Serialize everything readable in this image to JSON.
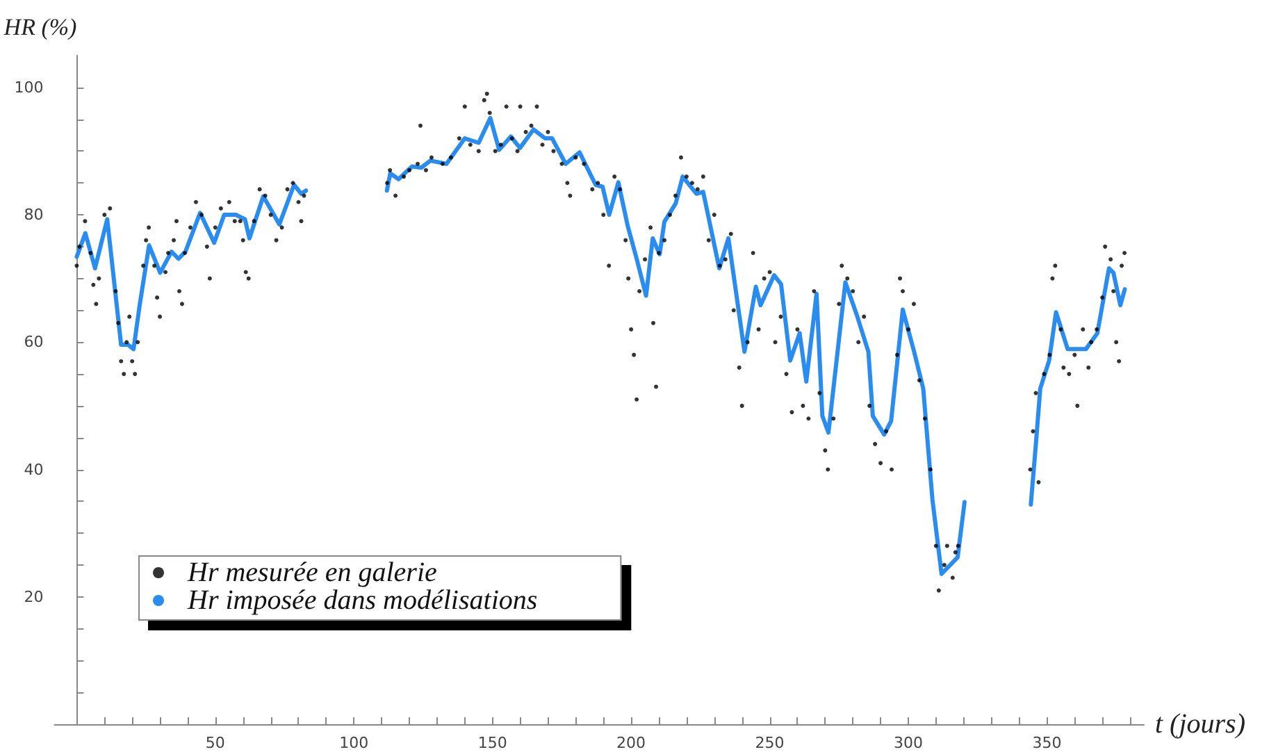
{
  "chart_data": {
    "type": "scatter",
    "xlabel": "t (jours)",
    "ylabel": "HR (%)",
    "xlim": [
      -8,
      385
    ],
    "ylim": [
      0,
      105
    ],
    "xticks": [
      {
        "value": 10,
        "label": null
      },
      {
        "value": 20,
        "label": null
      },
      {
        "value": 30,
        "label": null
      },
      {
        "value": 40,
        "label": null
      },
      50,
      {
        "value": 60,
        "label": null
      },
      {
        "value": 70,
        "label": null
      },
      {
        "value": 80,
        "label": null
      },
      {
        "value": 90,
        "label": null
      },
      100,
      {
        "value": 110,
        "label": null
      },
      {
        "value": 120,
        "label": null
      },
      {
        "value": 130,
        "label": null
      },
      {
        "value": 140,
        "label": null
      },
      150,
      {
        "value": 160,
        "label": null
      },
      {
        "value": 170,
        "label": null
      },
      {
        "value": 180,
        "label": null
      },
      {
        "value": 190,
        "label": null
      },
      200,
      {
        "value": 210,
        "label": null
      },
      {
        "value": 220,
        "label": null
      },
      {
        "value": 230,
        "label": null
      },
      {
        "value": 240,
        "label": null
      },
      250,
      {
        "value": 260,
        "label": null
      },
      {
        "value": 270,
        "label": null
      },
      {
        "value": 280,
        "label": null
      },
      {
        "value": 290,
        "label": null
      },
      300,
      {
        "value": 310,
        "label": null
      },
      {
        "value": 320,
        "label": null
      },
      {
        "value": 330,
        "label": null
      },
      {
        "value": 340,
        "label": null
      },
      350,
      {
        "value": 360,
        "label": null
      },
      {
        "value": 370,
        "label": null
      },
      {
        "value": 380,
        "label": null
      }
    ],
    "yticks": [
      {
        "value": 5,
        "label": null
      },
      {
        "value": 10,
        "label": null
      },
      {
        "value": 15,
        "label": null
      },
      20,
      {
        "value": 25,
        "label": null
      },
      {
        "value": 30,
        "label": null
      },
      {
        "value": 35,
        "label": null
      },
      40,
      {
        "value": 45,
        "label": null
      },
      {
        "value": 50,
        "label": null
      },
      {
        "value": 55,
        "label": null
      },
      60,
      {
        "value": 65,
        "label": null
      },
      {
        "value": 70,
        "label": null
      },
      {
        "value": 75,
        "label": null
      },
      80,
      {
        "value": 85,
        "label": null
      },
      {
        "value": 90,
        "label": null
      },
      {
        "value": 95,
        "label": null
      },
      100
    ],
    "grid": false,
    "legend": "bottom left",
    "marker": "circle",
    "series": [
      {
        "name": "Hr mesurée en galerie",
        "color": "#000000",
        "x": [
          0,
          1,
          3,
          5,
          6,
          7,
          8,
          10,
          12,
          14,
          15,
          16,
          17,
          18,
          19,
          20,
          21,
          22,
          24,
          25,
          26,
          28,
          29,
          30,
          32,
          33,
          35,
          36,
          37,
          38,
          39,
          41,
          43,
          45,
          47,
          48,
          50,
          52,
          55,
          57,
          59,
          60,
          61,
          62,
          64,
          66,
          68,
          70,
          72,
          74,
          76,
          78,
          80,
          81,
          82,
          112,
          113,
          115,
          118,
          120,
          123,
          124,
          126,
          128,
          132,
          135,
          138,
          140,
          142,
          145,
          147,
          148,
          149,
          151,
          153,
          155,
          157,
          159,
          160,
          162,
          164,
          166,
          168,
          170,
          172,
          175,
          177,
          178,
          180,
          183,
          186,
          188,
          190,
          192,
          194,
          196,
          198,
          199,
          200,
          201,
          202,
          203,
          205,
          207,
          208,
          209,
          210,
          212,
          214,
          216,
          218,
          220,
          222,
          224,
          226,
          228,
          230,
          232,
          234,
          236,
          237,
          239,
          240,
          242,
          244,
          246,
          248,
          250,
          252,
          254,
          256,
          258,
          260,
          262,
          264,
          266,
          268,
          270,
          271,
          273,
          275,
          276,
          278,
          280,
          282,
          284,
          286,
          288,
          290,
          292,
          294,
          296,
          297,
          298,
          300,
          302,
          304,
          306,
          308,
          310,
          311,
          313,
          314,
          316,
          317,
          318,
          344,
          345,
          346,
          347,
          349,
          351,
          352,
          353,
          355,
          356,
          358,
          360,
          361,
          363,
          365,
          366,
          368,
          370,
          371,
          373,
          374,
          375,
          376,
          377,
          378
        ],
        "values": [
          72,
          75,
          79,
          74,
          69,
          66,
          70,
          80,
          81,
          68,
          63,
          57,
          55,
          60,
          64,
          57,
          55,
          60,
          72,
          76,
          78,
          72,
          67,
          64,
          71,
          74,
          76,
          79,
          68,
          66,
          74,
          78,
          82,
          80,
          75,
          70,
          78,
          81,
          82,
          79,
          79,
          76,
          71,
          70,
          79,
          84,
          83,
          80,
          76,
          78,
          84,
          85,
          82,
          79,
          83,
          85,
          87,
          83,
          86,
          87,
          88,
          94,
          87,
          89,
          88,
          89,
          92,
          97,
          91,
          90,
          98,
          99,
          96,
          90,
          91,
          97,
          92,
          90,
          97,
          93,
          94,
          97,
          91,
          93,
          90,
          88,
          85,
          83,
          89,
          88,
          84,
          85,
          80,
          72,
          86,
          84,
          76,
          70,
          62,
          58,
          51,
          68,
          73,
          78,
          63,
          53,
          74,
          76,
          80,
          83,
          89,
          86,
          85,
          84,
          86,
          76,
          80,
          72,
          73,
          77,
          65,
          56,
          50,
          60,
          74,
          62,
          70,
          71,
          60,
          64,
          55,
          49,
          62,
          50,
          48,
          68,
          52,
          43,
          40,
          48,
          66,
          72,
          70,
          68,
          60,
          64,
          50,
          44,
          41,
          46,
          40,
          58,
          70,
          68,
          62,
          66,
          54,
          48,
          40,
          28,
          21,
          25,
          28,
          23,
          27,
          28,
          40,
          46,
          52,
          38,
          55,
          58,
          70,
          72,
          62,
          56,
          55,
          58,
          50,
          62,
          56,
          60,
          62,
          67,
          75,
          73,
          68,
          60,
          57,
          72,
          74
        ]
      },
      {
        "name": "Hr imposée dans modélisations",
        "color": "#2b8cf0",
        "type": "line",
        "marker": "none",
        "x": [
          0,
          3.1,
          6.6,
          11,
          16,
          18.5,
          20.5,
          22.7,
          26.1,
          30.1,
          34.2,
          36.7,
          39.2,
          44.5,
          49.6,
          53.2,
          57.4,
          60.7,
          62.3,
          67.3,
          73.1,
          78.4,
          81,
          82.7,
          97,
          111.9,
          113.1,
          116.1,
          121,
          124.3,
          127.6,
          133.4,
          140,
          145,
          149.2,
          152.4,
          156.6,
          159.9,
          164.8,
          169,
          171.5,
          176.4,
          181.4,
          187.2,
          189.7,
          192.1,
          195.4,
          198.8,
          202,
          205.4,
          207.8,
          210.3,
          212,
          216.1,
          218.6,
          223.6,
          226,
          231.8,
          235.1,
          240.9,
          245,
          246.7,
          251.6,
          254.1,
          257.4,
          260.8,
          263.2,
          266.9,
          269,
          271.2,
          277.3,
          281.4,
          285.6,
          287.2,
          291.3,
          293.8,
          298,
          302.1,
          305.4,
          306.2,
          308.7,
          312,
          317.8,
          320.3,
          332,
          344.2,
          345.9,
          347.6,
          350.8,
          353.3,
          357.5,
          364.1,
          368.2,
          372.4,
          374,
          376.5,
          378.1
        ],
        "values": [
          73.4,
          77.1,
          71.6,
          79.3,
          59.6,
          59.6,
          58.9,
          65.8,
          75.2,
          70.9,
          74.2,
          73.1,
          74.2,
          80.3,
          75.6,
          80,
          80,
          79.3,
          76.3,
          82.9,
          78.5,
          84.7,
          83.3,
          83.8,
          null,
          83.8,
          86.5,
          85.6,
          87.6,
          87.4,
          88.5,
          88,
          92,
          91.3,
          95.2,
          90.2,
          92.3,
          90.5,
          93.4,
          92,
          92,
          88,
          89.8,
          84.7,
          84.4,
          80,
          85.1,
          78.2,
          73.1,
          67.3,
          76.3,
          73.8,
          78.9,
          81.8,
          86,
          83.3,
          83.6,
          71.6,
          76.3,
          58.5,
          68.7,
          65.8,
          70.5,
          69.1,
          57.1,
          61.4,
          53.8,
          67.6,
          48.4,
          45.8,
          69.4,
          64.3,
          58.5,
          48.4,
          45.5,
          47.6,
          65.1,
          58.5,
          52.7,
          48.4,
          35.3,
          23.6,
          26.2,
          34.9,
          null,
          34.5,
          43.3,
          52.7,
          57.1,
          64.7,
          58.9,
          58.9,
          61.4,
          71.6,
          70.9,
          65.8,
          68.3
        ]
      }
    ]
  }
}
